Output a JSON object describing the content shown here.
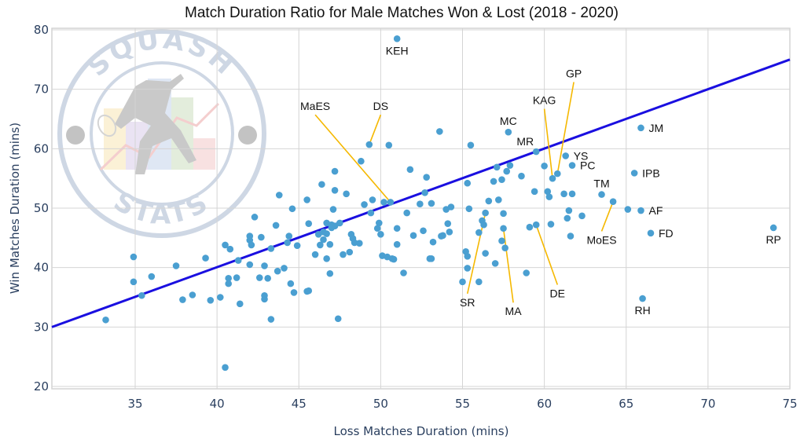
{
  "chart_data": {
    "type": "scatter",
    "title": "Match Duration Ratio for Male Matches Won & Lost (2018  - 2020)",
    "xlabel": "Loss Matches Duration (mins)",
    "ylabel": "Win Matches Duration (mins)",
    "xlim": [
      30.2,
      75
    ],
    "ylim": [
      19.5,
      80
    ],
    "xticks": [
      35,
      40,
      45,
      50,
      55,
      60,
      65,
      70,
      75
    ],
    "yticks": [
      20,
      30,
      40,
      50,
      60,
      70,
      80
    ],
    "grid": true,
    "marker_color": "#4a9fd1",
    "reference_line": {
      "color": "#1a0fe0",
      "from": [
        30.2,
        30
      ],
      "to": [
        75,
        75
      ]
    },
    "leader_color": "#f5b800",
    "watermark": {
      "top_text": "SQUASH",
      "bottom_text": "STATS"
    },
    "labeled_points": [
      {
        "label": "KEH",
        "x": 51.0,
        "y": 78.5,
        "label_pos": "below"
      },
      {
        "label": "DS",
        "x": 49.3,
        "y": 60.7,
        "label_pos": "leader",
        "lx": 50.0,
        "ly": 66.5
      },
      {
        "label": "MaES",
        "x": 50.6,
        "y": 51.0,
        "label_pos": "leader",
        "lx": 46.0,
        "ly": 66.5
      },
      {
        "label": "MC",
        "x": 57.8,
        "y": 62.8,
        "label_pos": "above"
      },
      {
        "label": "MR",
        "x": 59.5,
        "y": 59.5,
        "label_pos": "above-left"
      },
      {
        "label": "KAG",
        "x": 60.5,
        "y": 55.0,
        "label_pos": "leader",
        "lx": 60.0,
        "ly": 67.5
      },
      {
        "label": "GP",
        "x": 60.8,
        "y": 55.8,
        "label_pos": "leader",
        "lx": 61.8,
        "ly": 72.0
      },
      {
        "label": "YS",
        "x": 61.3,
        "y": 58.8,
        "label_pos": "right"
      },
      {
        "label": "PC",
        "x": 61.7,
        "y": 57.2,
        "label_pos": "right"
      },
      {
        "label": "TM",
        "x": 63.5,
        "y": 52.3,
        "label_pos": "above"
      },
      {
        "label": "MoES",
        "x": 64.2,
        "y": 51.1,
        "label_pos": "leader",
        "lx": 63.5,
        "ly": 44.0
      },
      {
        "label": "JM",
        "x": 65.9,
        "y": 63.5,
        "label_pos": "right"
      },
      {
        "label": "IPB",
        "x": 65.5,
        "y": 55.9,
        "label_pos": "right"
      },
      {
        "label": "AF",
        "x": 65.9,
        "y": 49.6,
        "label_pos": "right"
      },
      {
        "label": "FD",
        "x": 66.5,
        "y": 45.8,
        "label_pos": "right"
      },
      {
        "label": "RP",
        "x": 74.0,
        "y": 46.7,
        "label_pos": "below"
      },
      {
        "label": "RH",
        "x": 66.0,
        "y": 34.8,
        "label_pos": "below"
      },
      {
        "label": "SR",
        "x": 56.4,
        "y": 49.2,
        "label_pos": "leader",
        "lx": 55.3,
        "ly": 33.5
      },
      {
        "label": "MA",
        "x": 57.5,
        "y": 46.6,
        "label_pos": "leader",
        "lx": 58.1,
        "ly": 32.0
      },
      {
        "label": "DE",
        "x": 59.5,
        "y": 47.2,
        "label_pos": "leader",
        "lx": 60.8,
        "ly": 35.0
      }
    ],
    "points": [
      [
        33.2,
        31.2
      ],
      [
        34.9,
        41.8
      ],
      [
        34.9,
        37.6
      ],
      [
        35.4,
        35.3
      ],
      [
        36.0,
        38.5
      ],
      [
        37.5,
        40.3
      ],
      [
        37.9,
        34.6
      ],
      [
        38.5,
        35.4
      ],
      [
        39.3,
        41.6
      ],
      [
        39.6,
        34.5
      ],
      [
        40.2,
        35.0
      ],
      [
        40.5,
        23.2
      ],
      [
        40.5,
        43.8
      ],
      [
        40.8,
        43.1
      ],
      [
        40.7,
        38.2
      ],
      [
        40.7,
        37.3
      ],
      [
        41.2,
        38.3
      ],
      [
        41.3,
        41.2
      ],
      [
        41.4,
        33.9
      ],
      [
        42.0,
        45.3
      ],
      [
        42.0,
        44.6
      ],
      [
        42.1,
        43.8
      ],
      [
        42.3,
        48.5
      ],
      [
        42.0,
        40.5
      ],
      [
        42.6,
        38.3
      ],
      [
        42.7,
        45.1
      ],
      [
        42.9,
        40.3
      ],
      [
        42.9,
        35.3
      ],
      [
        42.9,
        34.7
      ],
      [
        43.1,
        38.2
      ],
      [
        43.3,
        31.3
      ],
      [
        43.3,
        43.2
      ],
      [
        43.6,
        47.1
      ],
      [
        43.7,
        39.4
      ],
      [
        43.8,
        52.2
      ],
      [
        44.1,
        39.9
      ],
      [
        44.4,
        45.3
      ],
      [
        44.3,
        44.2
      ],
      [
        44.5,
        37.3
      ],
      [
        44.6,
        49.9
      ],
      [
        44.7,
        35.8
      ],
      [
        44.9,
        43.7
      ],
      [
        45.5,
        36.0
      ],
      [
        45.6,
        47.4
      ],
      [
        45.5,
        51.4
      ],
      [
        46.0,
        42.2
      ],
      [
        46.2,
        45.6
      ],
      [
        46.3,
        43.8
      ],
      [
        46.5,
        46.0
      ],
      [
        46.7,
        45.7
      ],
      [
        46.7,
        47.5
      ],
      [
        46.9,
        43.9
      ],
      [
        46.7,
        41.5
      ],
      [
        46.4,
        54.0
      ],
      [
        46.5,
        44.7
      ],
      [
        46.9,
        39.0
      ],
      [
        47.0,
        46.7
      ],
      [
        47.0,
        47.2
      ],
      [
        47.1,
        49.8
      ],
      [
        47.2,
        56.2
      ],
      [
        47.2,
        53.0
      ],
      [
        47.4,
        31.4
      ],
      [
        47.5,
        47.5
      ],
      [
        47.7,
        42.2
      ],
      [
        47.9,
        52.4
      ],
      [
        48.1,
        42.6
      ],
      [
        48.2,
        45.6
      ],
      [
        48.3,
        44.9
      ],
      [
        48.4,
        44.2
      ],
      [
        48.7,
        44.1
      ],
      [
        48.8,
        57.9
      ],
      [
        49.0,
        50.6
      ],
      [
        49.3,
        60.7
      ],
      [
        49.4,
        49.2
      ],
      [
        49.5,
        51.4
      ],
      [
        49.8,
        46.6
      ],
      [
        49.9,
        47.5
      ],
      [
        50.0,
        45.6
      ],
      [
        50.1,
        42.0
      ],
      [
        50.2,
        51.0
      ],
      [
        50.4,
        41.8
      ],
      [
        50.5,
        60.6
      ],
      [
        50.6,
        51.0
      ],
      [
        50.7,
        41.5
      ],
      [
        50.8,
        41.4
      ],
      [
        51.0,
        46.6
      ],
      [
        51.0,
        43.9
      ],
      [
        51.4,
        39.1
      ],
      [
        51.6,
        49.2
      ],
      [
        51.8,
        56.5
      ],
      [
        52.0,
        45.4
      ],
      [
        52.4,
        50.7
      ],
      [
        52.6,
        46.2
      ],
      [
        52.7,
        52.6
      ],
      [
        52.8,
        55.2
      ],
      [
        53.0,
        41.5
      ],
      [
        53.1,
        41.5
      ],
      [
        53.1,
        50.8
      ],
      [
        53.2,
        44.3
      ],
      [
        53.6,
        62.9
      ],
      [
        53.7,
        45.3
      ],
      [
        53.8,
        45.4
      ],
      [
        54.1,
        47.4
      ],
      [
        54.0,
        49.8
      ],
      [
        54.2,
        46.0
      ],
      [
        54.3,
        50.2
      ],
      [
        55.0,
        37.6
      ],
      [
        55.2,
        42.7
      ],
      [
        55.3,
        41.9
      ],
      [
        55.3,
        54.2
      ],
      [
        55.3,
        39.9
      ],
      [
        55.4,
        49.9
      ],
      [
        55.5,
        60.6
      ],
      [
        56.0,
        37.6
      ],
      [
        56.0,
        45.9
      ],
      [
        56.2,
        47.9
      ],
      [
        56.3,
        47.2
      ],
      [
        56.4,
        49.2
      ],
      [
        56.4,
        42.4
      ],
      [
        56.6,
        51.2
      ],
      [
        56.9,
        54.5
      ],
      [
        57.0,
        40.7
      ],
      [
        57.1,
        56.9
      ],
      [
        57.2,
        51.4
      ],
      [
        57.4,
        54.8
      ],
      [
        57.4,
        44.5
      ],
      [
        57.5,
        46.6
      ],
      [
        57.5,
        49.1
      ],
      [
        57.6,
        43.3
      ],
      [
        57.8,
        62.8
      ],
      [
        57.9,
        57.2
      ],
      [
        57.7,
        56.2
      ],
      [
        58.6,
        55.4
      ],
      [
        58.9,
        39.1
      ],
      [
        59.1,
        46.8
      ],
      [
        59.4,
        52.8
      ],
      [
        59.5,
        47.2
      ],
      [
        59.5,
        59.5
      ],
      [
        60.0,
        57.1
      ],
      [
        60.2,
        52.8
      ],
      [
        60.3,
        51.9
      ],
      [
        60.4,
        47.3
      ],
      [
        60.5,
        55.0
      ],
      [
        60.8,
        55.8
      ],
      [
        61.2,
        52.4
      ],
      [
        61.3,
        58.8
      ],
      [
        61.4,
        48.3
      ],
      [
        61.5,
        49.6
      ],
      [
        61.7,
        57.2
      ],
      [
        61.6,
        45.3
      ],
      [
        61.7,
        52.4
      ],
      [
        62.3,
        48.7
      ],
      [
        63.5,
        52.3
      ],
      [
        64.2,
        51.1
      ],
      [
        65.1,
        49.8
      ],
      [
        65.9,
        49.6
      ],
      [
        65.5,
        55.9
      ],
      [
        65.9,
        63.5
      ],
      [
        66.5,
        45.8
      ],
      [
        66.0,
        34.8
      ],
      [
        74.0,
        46.7
      ],
      [
        51.0,
        78.5
      ],
      [
        47.2,
        47.0
      ],
      [
        45.6,
        36.1
      ]
    ]
  }
}
